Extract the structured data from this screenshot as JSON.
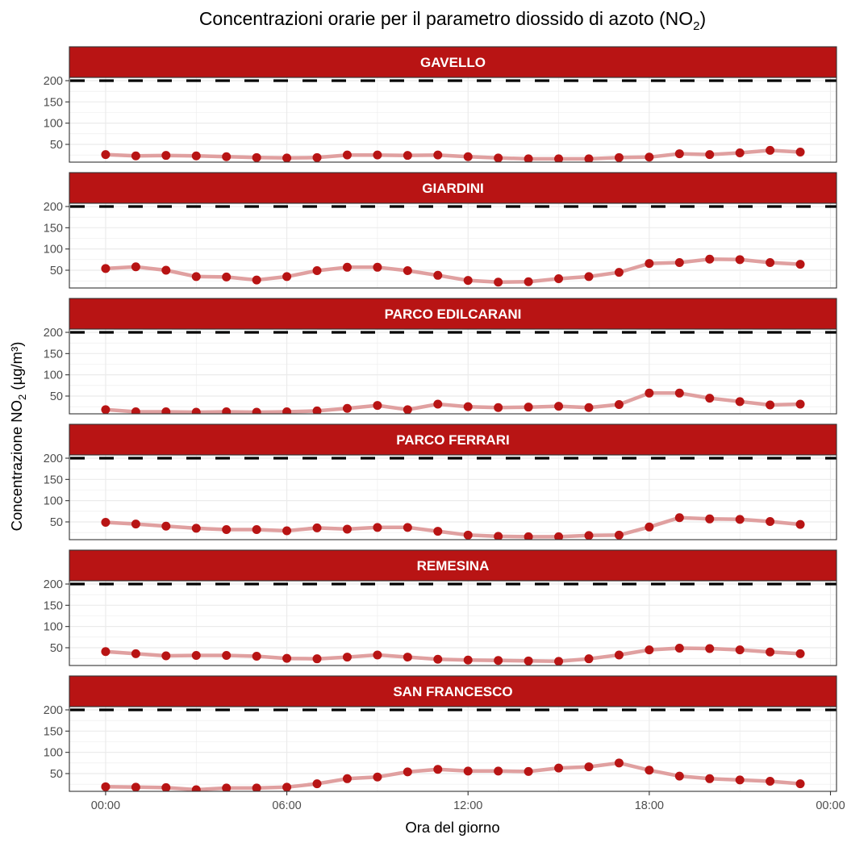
{
  "chart_data": {
    "type": "line",
    "title": "Concentrazioni orarie per il parametro diossido di azoto (NO",
    "title_subscript": "2",
    "title_suffix": ")",
    "xlabel": "Ora del giorno",
    "ylabel_prefix": "Concentrazione NO",
    "ylabel_subscript": "2",
    "ylabel_suffix": " (µg/m³)",
    "x_hours": [
      0,
      1,
      2,
      3,
      4,
      5,
      6,
      7,
      8,
      9,
      10,
      11,
      12,
      13,
      14,
      15,
      16,
      17,
      18,
      19,
      20,
      21,
      22,
      23
    ],
    "xlim": [
      -1.2,
      24.2
    ],
    "ylim": [
      8.2,
      207.6
    ],
    "x_ticks": [
      {
        "hour": 0,
        "label": "00:00"
      },
      {
        "hour": 6,
        "label": "06:00"
      },
      {
        "hour": 12,
        "label": "12:00"
      },
      {
        "hour": 18,
        "label": "18:00"
      },
      {
        "hour": 24,
        "label": "00:00"
      }
    ],
    "y_ticks": [
      {
        "value": 50,
        "label": "50"
      },
      {
        "value": 100,
        "label": "100"
      },
      {
        "value": 150,
        "label": "150"
      },
      {
        "value": 200,
        "label": "200"
      }
    ],
    "threshold": {
      "value": 200,
      "style": "dashed"
    },
    "grid": true,
    "colors": {
      "strip": "#B81414",
      "point": "#B81414",
      "line": "#E0A0A0",
      "threshold": "#000000",
      "grid": "#EBEBEB",
      "border": "#333333"
    },
    "series": [
      {
        "name": "GAVELLO",
        "values": [
          26,
          23,
          24,
          23,
          21,
          19,
          18,
          19,
          25,
          25,
          24,
          25,
          21,
          18,
          16,
          16,
          16,
          19,
          20,
          28,
          26,
          30,
          36,
          32
        ]
      },
      {
        "name": "GIARDINI",
        "values": [
          54,
          58,
          50,
          35,
          34,
          27,
          35,
          49,
          57,
          57,
          49,
          38,
          26,
          22,
          23,
          30,
          35,
          45,
          66,
          68,
          76,
          75,
          68,
          64
        ]
      },
      {
        "name": "PARCO EDILCARANI",
        "values": [
          18,
          13,
          13,
          12,
          13,
          12,
          13,
          15,
          21,
          28,
          18,
          31,
          25,
          23,
          24,
          26,
          23,
          30,
          57,
          57,
          45,
          37,
          29,
          31
        ]
      },
      {
        "name": "PARCO FERRARI",
        "values": [
          49,
          45,
          40,
          35,
          32,
          32,
          29,
          36,
          33,
          37,
          37,
          28,
          19,
          16,
          15,
          15,
          18,
          19,
          38,
          60,
          57,
          56,
          51,
          44
        ]
      },
      {
        "name": "REMESINA",
        "values": [
          41,
          36,
          31,
          32,
          32,
          30,
          25,
          24,
          28,
          33,
          28,
          23,
          21,
          20,
          19,
          18,
          24,
          33,
          45,
          49,
          48,
          45,
          40,
          36
        ]
      },
      {
        "name": "SAN FRANCESCO",
        "values": [
          19,
          18,
          17,
          12,
          16,
          16,
          18,
          26,
          38,
          42,
          54,
          60,
          56,
          56,
          55,
          63,
          66,
          75,
          58,
          44,
          38,
          35,
          32,
          26
        ]
      }
    ]
  }
}
